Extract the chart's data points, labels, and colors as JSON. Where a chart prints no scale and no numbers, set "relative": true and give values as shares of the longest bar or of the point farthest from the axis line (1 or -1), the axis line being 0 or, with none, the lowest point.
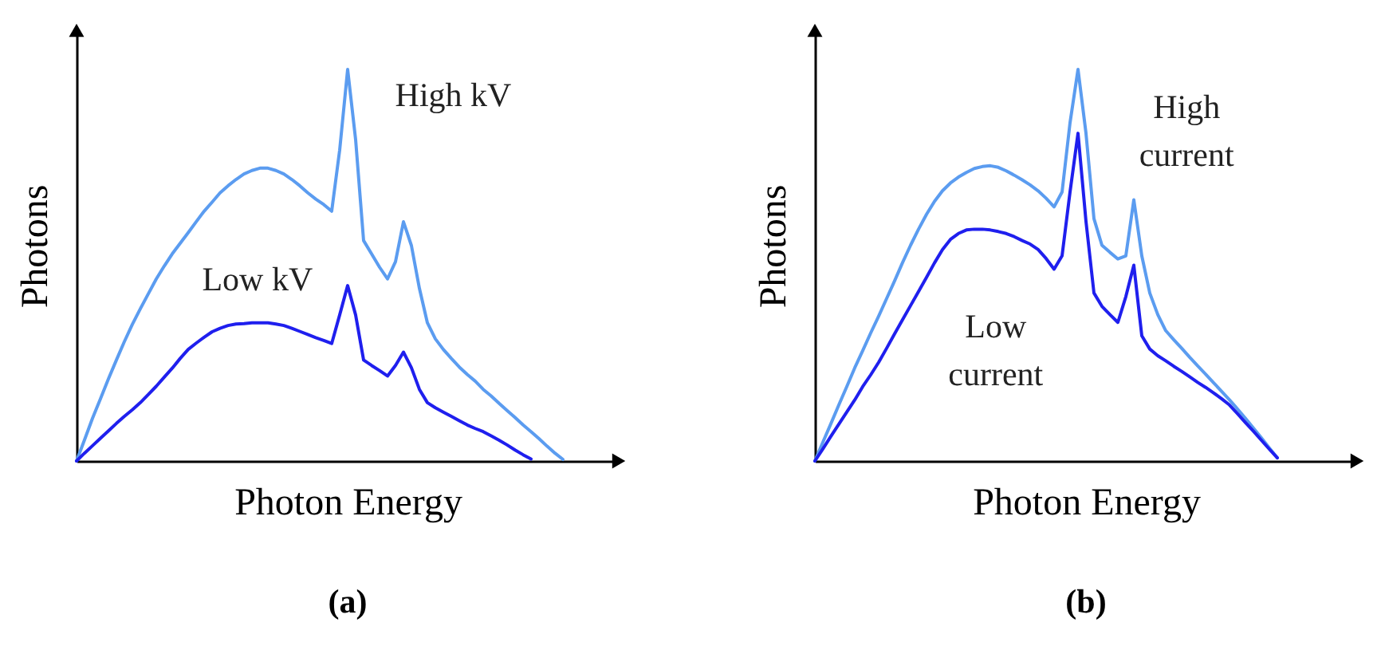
{
  "chart_data": [
    {
      "type": "line",
      "title": "(a)",
      "xlabel": "Photon Energy",
      "ylabel": "Photons",
      "relative": true,
      "tick_labels": false,
      "categories": [
        null,
        null,
        null,
        null,
        null,
        null,
        null,
        null,
        null,
        null,
        null,
        null,
        null,
        null,
        null,
        null,
        null,
        null,
        null,
        null,
        null,
        null,
        null,
        null,
        null,
        null,
        null,
        null,
        null,
        null,
        null,
        null,
        null,
        null,
        null,
        null,
        null,
        null,
        null,
        null,
        null,
        null,
        null,
        null,
        null,
        null,
        null,
        null,
        null,
        null,
        null,
        null,
        null,
        null,
        null,
        null,
        null,
        null,
        null,
        null,
        null,
        null,
        null
      ],
      "series": [
        {
          "name": "High kV",
          "color": "#5b9cf0",
          "values": [
            0,
            0.054,
            0.109,
            0.159,
            0.21,
            0.258,
            0.305,
            0.349,
            0.389,
            0.427,
            0.465,
            0.498,
            0.529,
            0.556,
            0.583,
            0.611,
            0.638,
            0.661,
            0.685,
            0.703,
            0.719,
            0.733,
            0.742,
            0.748,
            0.748,
            0.742,
            0.733,
            0.719,
            0.703,
            0.685,
            0.669,
            0.655,
            0.638,
            0.794,
            1,
            0.821,
            0.563,
            0.529,
            0.495,
            0.465,
            0.509,
            0.611,
            0.55,
            0.441,
            0.353,
            0.312,
            0.285,
            0.262,
            0.24,
            0.221,
            0.204,
            0.183,
            0.166,
            0.147,
            0.129,
            0.111,
            0.092,
            0.075,
            0.057,
            0.038,
            0.02,
            0.004,
            null
          ]
        },
        {
          "name": "Low kV",
          "color": "#1f1fee",
          "values": [
            0,
            0.02,
            0.039,
            0.058,
            0.077,
            0.096,
            0.114,
            0.131,
            0.149,
            0.17,
            0.191,
            0.214,
            0.237,
            0.262,
            0.285,
            0.301,
            0.316,
            0.33,
            0.339,
            0.346,
            0.35,
            0.351,
            0.353,
            0.353,
            0.353,
            0.35,
            0.346,
            0.339,
            0.331,
            0.323,
            0.315,
            0.308,
            0.3,
            0.373,
            0.448,
            0.373,
            0.258,
            0.244,
            0.231,
            0.217,
            0.244,
            0.278,
            0.238,
            0.183,
            0.149,
            0.136,
            0.125,
            0.114,
            0.103,
            0.092,
            0.083,
            0.075,
            0.064,
            0.053,
            0.041,
            0.028,
            0.016,
            0.005,
            null,
            null,
            null,
            null,
            null
          ]
        }
      ]
    },
    {
      "type": "line",
      "title": "(b)",
      "xlabel": "Photon Energy",
      "ylabel": "Photons",
      "relative": true,
      "tick_labels": false,
      "categories": [
        null,
        null,
        null,
        null,
        null,
        null,
        null,
        null,
        null,
        null,
        null,
        null,
        null,
        null,
        null,
        null,
        null,
        null,
        null,
        null,
        null,
        null,
        null,
        null,
        null,
        null,
        null,
        null,
        null,
        null,
        null,
        null,
        null,
        null,
        null,
        null,
        null,
        null,
        null,
        null,
        null,
        null,
        null,
        null,
        null,
        null,
        null,
        null,
        null,
        null,
        null,
        null,
        null,
        null,
        null,
        null,
        null,
        null,
        null,
        null,
        null,
        null,
        null
      ],
      "series": [
        {
          "name": "High current",
          "color": "#5b9cf0",
          "values": [
            0,
            0.048,
            0.095,
            0.143,
            0.19,
            0.238,
            0.282,
            0.327,
            0.37,
            0.415,
            0.46,
            0.507,
            0.551,
            0.592,
            0.63,
            0.663,
            0.69,
            0.71,
            0.725,
            0.737,
            0.747,
            0.752,
            0.754,
            0.75,
            0.741,
            0.73,
            0.718,
            0.705,
            0.69,
            0.671,
            0.649,
            0.687,
            0.864,
            1,
            0.837,
            0.619,
            0.551,
            0.533,
            0.516,
            0.524,
            0.667,
            0.524,
            0.429,
            0.374,
            0.333,
            0.31,
            0.288,
            0.265,
            0.243,
            0.222,
            0.2,
            0.178,
            0.156,
            0.133,
            0.109,
            0.084,
            0.059,
            0.033,
            0.008,
            null,
            null,
            null,
            null
          ]
        },
        {
          "name": "Low current",
          "color": "#1f1fee",
          "values": [
            0,
            0.031,
            0.063,
            0.094,
            0.125,
            0.156,
            0.19,
            0.22,
            0.252,
            0.288,
            0.325,
            0.361,
            0.397,
            0.433,
            0.469,
            0.506,
            0.54,
            0.566,
            0.581,
            0.59,
            0.592,
            0.592,
            0.59,
            0.586,
            0.581,
            0.573,
            0.563,
            0.554,
            0.54,
            0.517,
            0.49,
            0.524,
            0.687,
            0.837,
            0.612,
            0.429,
            0.395,
            0.374,
            0.354,
            0.42,
            0.5,
            0.32,
            0.286,
            0.269,
            0.256,
            0.242,
            0.229,
            0.215,
            0.201,
            0.188,
            0.174,
            0.159,
            0.143,
            0.121,
            0.098,
            0.076,
            0.053,
            0.03,
            0.008,
            null,
            null,
            null,
            null
          ]
        }
      ]
    }
  ]
}
